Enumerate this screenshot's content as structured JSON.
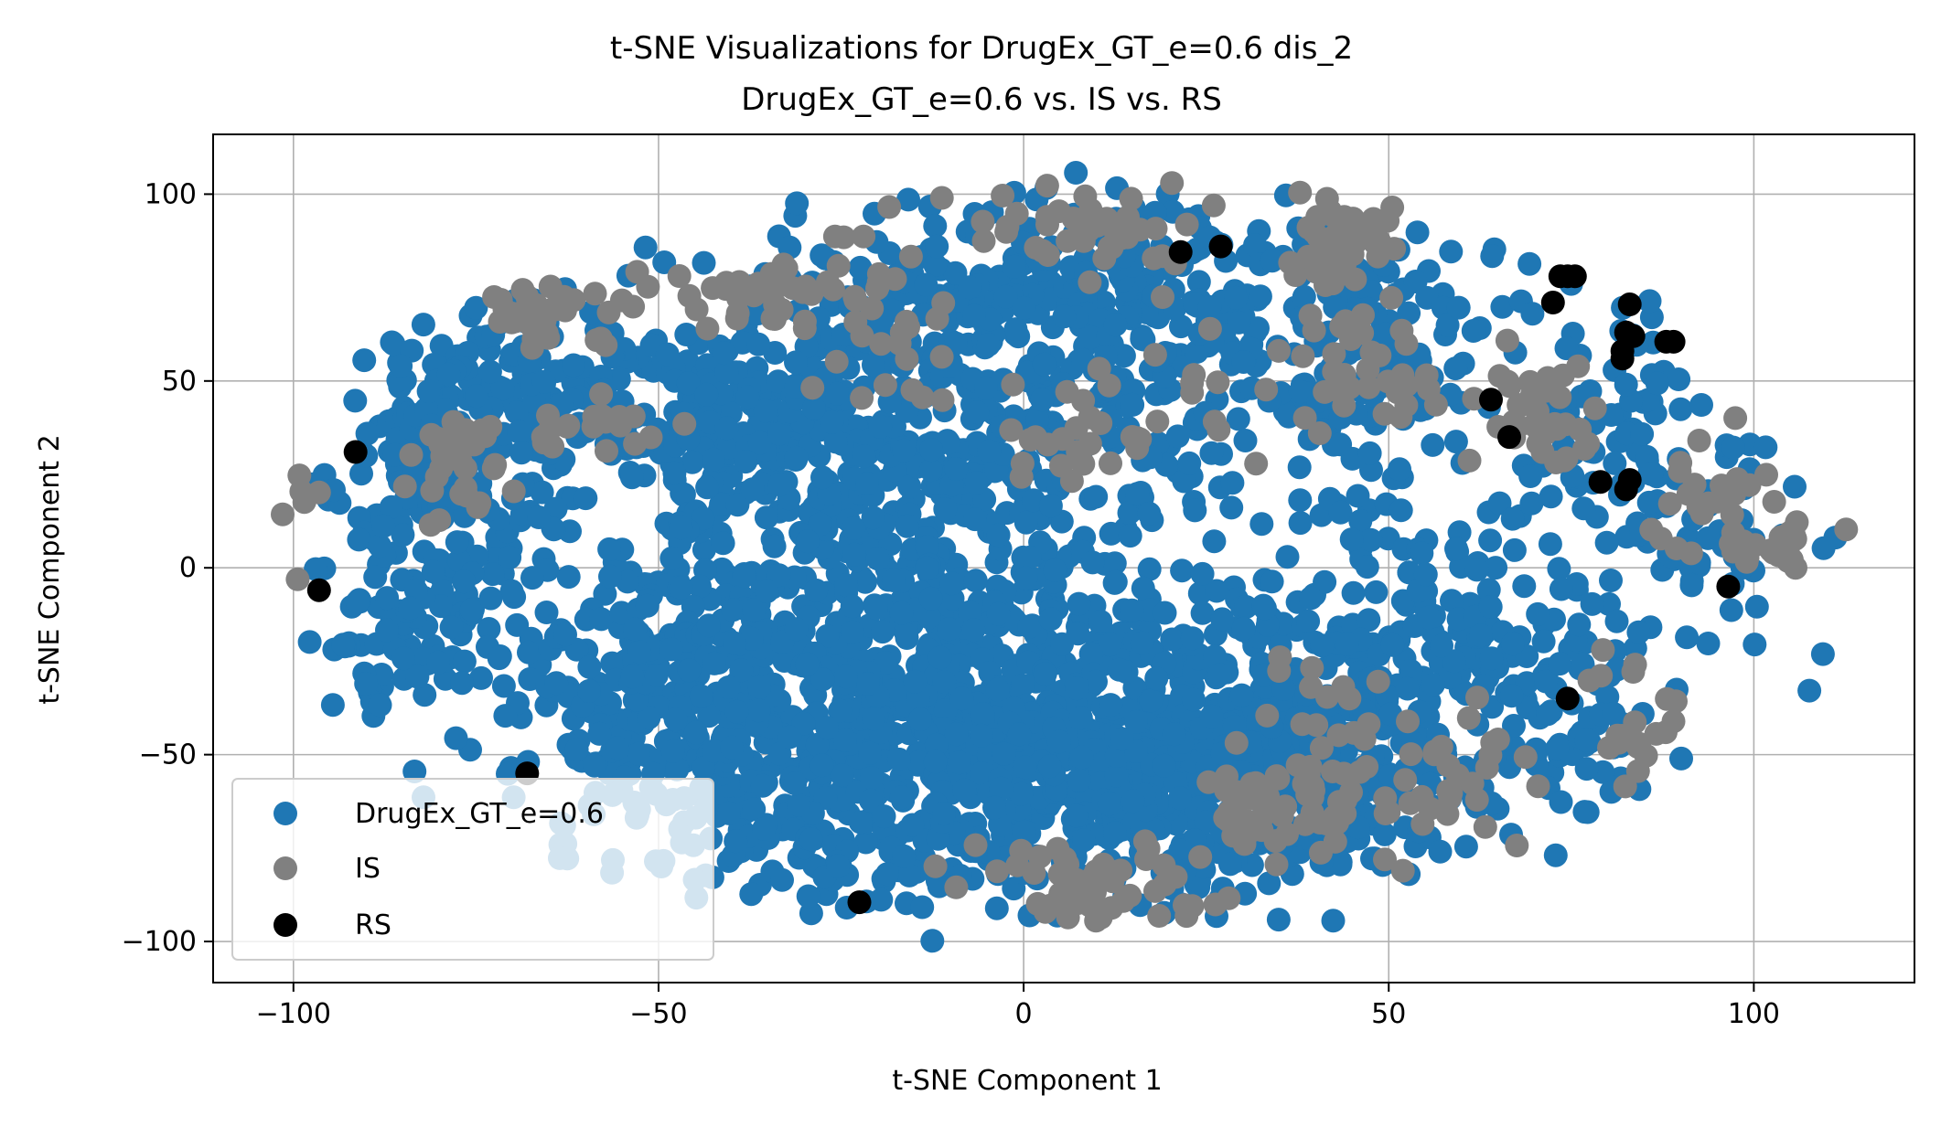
{
  "colors": {
    "drugex": "#1f77b4",
    "is": "#808080",
    "rs": "#000000",
    "grid": "#b0b0b0",
    "legend_border": "#cccccc"
  },
  "chart_data": {
    "type": "scatter",
    "title": "t-SNE Visualizations for DrugEx_GT_e=0.6 dis_2",
    "subtitle": "DrugEx_GT_e=0.6 vs. IS vs. RS",
    "xlabel": "t-SNE Component 1",
    "ylabel": "t-SNE Component 2",
    "xlim": [
      -111,
      122
    ],
    "ylim": [
      -111,
      116
    ],
    "xticks": [
      -100,
      -50,
      0,
      50,
      100
    ],
    "yticks": [
      -100,
      -50,
      0,
      50,
      100
    ],
    "xtick_labels": [
      "−100",
      "−50",
      "0",
      "50",
      "100"
    ],
    "ytick_labels": [
      "−100",
      "−50",
      "0",
      "50",
      "100"
    ],
    "grid": true,
    "legend_position": "lower-left",
    "series": [
      {
        "name": "DrugEx_GT_e=0.6",
        "color": "#1f77b4",
        "clusters": [
          {
            "cx": -10,
            "cy": -20,
            "sx": 30,
            "sy": 40,
            "n": 900
          },
          {
            "cx": -30,
            "cy": 40,
            "sx": 20,
            "sy": 22,
            "n": 350
          },
          {
            "cx": 10,
            "cy": 70,
            "sx": 25,
            "sy": 18,
            "n": 300
          },
          {
            "cx": 25,
            "cy": -55,
            "sx": 20,
            "sy": 20,
            "n": 350
          },
          {
            "cx": -20,
            "cy": -60,
            "sx": 30,
            "sy": 18,
            "n": 300
          },
          {
            "cx": -80,
            "cy": 20,
            "sx": 8,
            "sy": 22,
            "n": 150
          },
          {
            "cx": -70,
            "cy": 50,
            "sx": 12,
            "sy": 12,
            "n": 120
          },
          {
            "cx": 45,
            "cy": 55,
            "sx": 12,
            "sy": 20,
            "n": 150
          },
          {
            "cx": 40,
            "cy": -40,
            "sx": 15,
            "sy": 25,
            "n": 150
          },
          {
            "cx": 60,
            "cy": -10,
            "sx": 15,
            "sy": 20,
            "n": 120
          },
          {
            "cx": -50,
            "cy": -30,
            "sx": 12,
            "sy": 20,
            "n": 200
          },
          {
            "cx": 70,
            "cy": -40,
            "sx": 10,
            "sy": 18,
            "n": 80
          },
          {
            "cx": 95,
            "cy": 10,
            "sx": 8,
            "sy": 18,
            "n": 60
          },
          {
            "cx": 80,
            "cy": 40,
            "sx": 8,
            "sy": 15,
            "n": 60
          },
          {
            "cx": -85,
            "cy": -20,
            "sx": 8,
            "sy": 12,
            "n": 60
          }
        ]
      },
      {
        "name": "IS",
        "color": "#808080",
        "clusters": [
          {
            "cx": -65,
            "cy": 68,
            "sx": 6,
            "sy": 5,
            "n": 35
          },
          {
            "cx": -40,
            "cy": 72,
            "sx": 8,
            "sy": 6,
            "n": 30
          },
          {
            "cx": -20,
            "cy": 70,
            "sx": 8,
            "sy": 12,
            "n": 40
          },
          {
            "cx": 10,
            "cy": 92,
            "sx": 10,
            "sy": 6,
            "n": 40
          },
          {
            "cx": 43,
            "cy": 88,
            "sx": 4,
            "sy": 8,
            "n": 40
          },
          {
            "cx": 45,
            "cy": 55,
            "sx": 6,
            "sy": 12,
            "n": 35
          },
          {
            "cx": 70,
            "cy": 42,
            "sx": 6,
            "sy": 8,
            "n": 40
          },
          {
            "cx": -77,
            "cy": 30,
            "sx": 4,
            "sy": 8,
            "n": 35
          },
          {
            "cx": -60,
            "cy": 38,
            "sx": 6,
            "sy": 5,
            "n": 20
          },
          {
            "cx": 95,
            "cy": 20,
            "sx": 5,
            "sy": 10,
            "n": 30
          },
          {
            "cx": 105,
            "cy": 6,
            "sx": 4,
            "sy": 3,
            "n": 20
          },
          {
            "cx": 35,
            "cy": -65,
            "sx": 8,
            "sy": 8,
            "n": 50
          },
          {
            "cx": 10,
            "cy": -85,
            "sx": 12,
            "sy": 6,
            "n": 50
          },
          {
            "cx": 45,
            "cy": -45,
            "sx": 8,
            "sy": 15,
            "n": 35
          },
          {
            "cx": 60,
            "cy": -60,
            "sx": 6,
            "sy": 10,
            "n": 25
          },
          {
            "cx": 85,
            "cy": -40,
            "sx": 5,
            "sy": 12,
            "n": 20
          },
          {
            "cx": 20,
            "cy": 50,
            "sx": 10,
            "sy": 15,
            "n": 20
          },
          {
            "cx": 5,
            "cy": 35,
            "sx": 6,
            "sy": 6,
            "n": 20
          },
          {
            "cx": -100,
            "cy": 15,
            "sx": 2,
            "sy": 10,
            "n": 6
          }
        ]
      },
      {
        "name": "RS",
        "color": "#000000",
        "points": [
          [
            -91.5,
            31
          ],
          [
            -96.5,
            -6
          ],
          [
            -68,
            -55
          ],
          [
            -22.5,
            -89.5
          ],
          [
            21.5,
            84.5
          ],
          [
            27,
            86
          ],
          [
            64,
            45
          ],
          [
            66.5,
            35
          ],
          [
            72.5,
            71
          ],
          [
            73.5,
            78
          ],
          [
            74.5,
            78
          ],
          [
            75.5,
            78
          ],
          [
            83,
            70.5
          ],
          [
            82.5,
            63
          ],
          [
            83.5,
            62
          ],
          [
            82,
            58
          ],
          [
            82,
            56
          ],
          [
            88,
            60.5
          ],
          [
            89,
            60.5
          ],
          [
            79,
            23
          ],
          [
            82.5,
            21
          ],
          [
            83,
            23.5
          ],
          [
            74.5,
            -35
          ],
          [
            96.5,
            -5
          ]
        ]
      }
    ]
  }
}
